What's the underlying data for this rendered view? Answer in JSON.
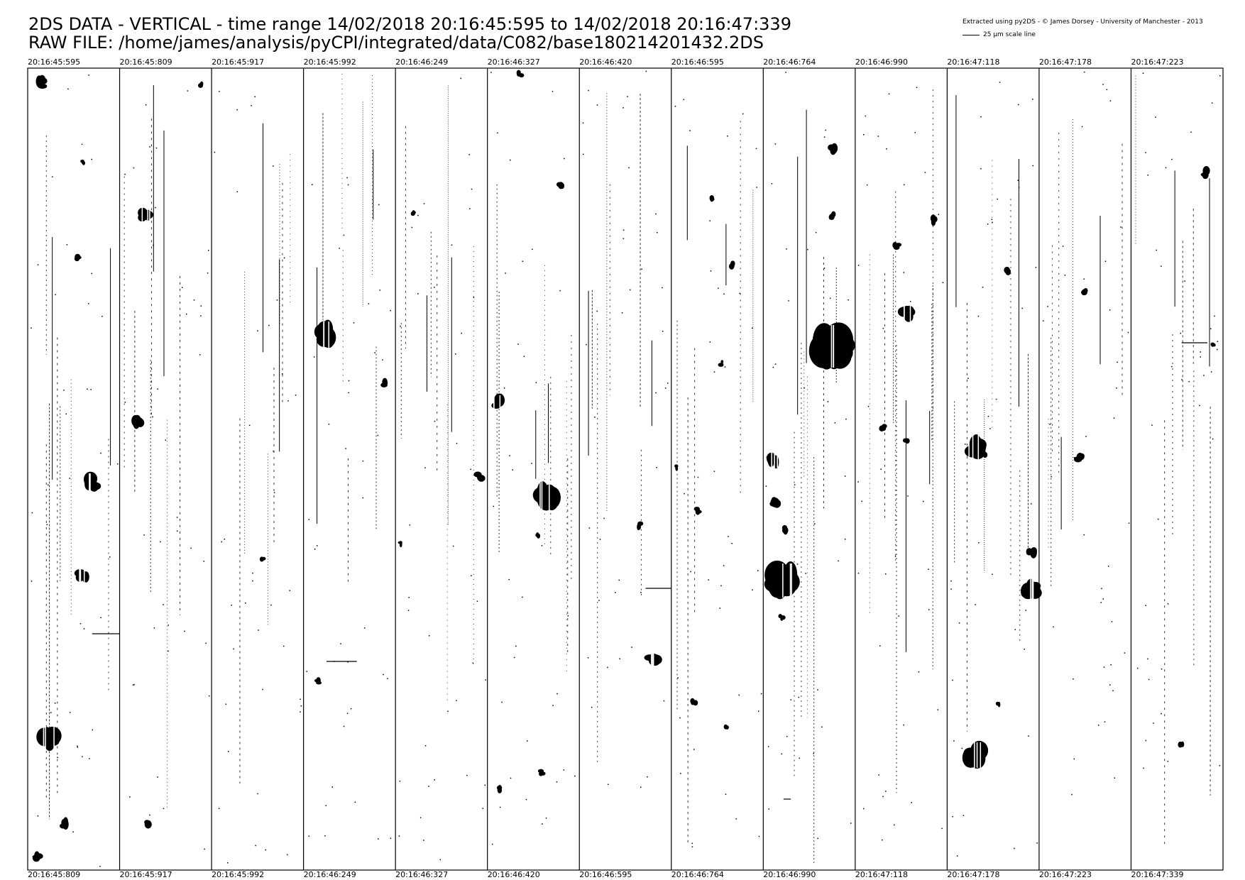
{
  "title": {
    "line1": "2DS DATA - VERTICAL - time range 14/02/2018 20:16:45:595 to 14/02/2018 20:16:47:339",
    "line2": "RAW FILE: /home/james/analysis/pyCPI/integrated/data/C082/base180214201432.2DS"
  },
  "credit": "Extracted using py2DS - © James Dorsey - University of Manchester - 2013",
  "scale_label": "25 µm scale line",
  "columns": [
    {
      "start": "20:16:45:595",
      "end": "20:16:45:809"
    },
    {
      "start": "20:16:45:809",
      "end": "20:16:45:917"
    },
    {
      "start": "20:16:45:917",
      "end": "20:16:45:992"
    },
    {
      "start": "20:16:45:992",
      "end": "20:16:46:249"
    },
    {
      "start": "20:16:46:249",
      "end": "20:16:46:327"
    },
    {
      "start": "20:16:46:327",
      "end": "20:16:46:420"
    },
    {
      "start": "20:16:46:420",
      "end": "20:16:46:595"
    },
    {
      "start": "20:16:46:595",
      "end": "20:16:46:764"
    },
    {
      "start": "20:16:46:764",
      "end": "20:16:46:990"
    },
    {
      "start": "20:16:46:990",
      "end": "20:16:47:118"
    },
    {
      "start": "20:16:47:118",
      "end": "20:16:47:178"
    },
    {
      "start": "20:16:47:178",
      "end": "20:16:47:223"
    },
    {
      "start": "20:16:47:223",
      "end": "20:16:47:339"
    }
  ]
}
